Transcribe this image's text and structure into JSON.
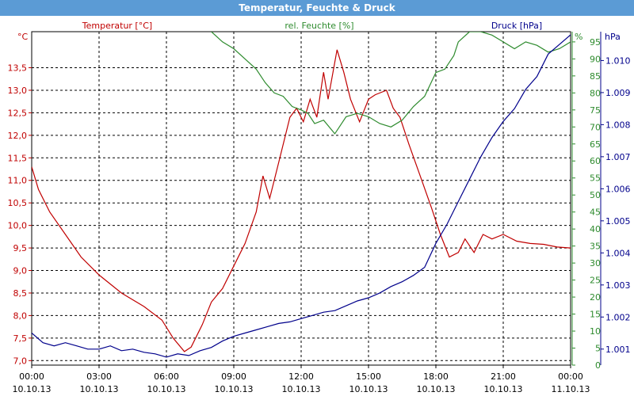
{
  "window": {
    "title": "Temperatur, Feuchte & Druck"
  },
  "colors": {
    "temperature": "#c00000",
    "humidity": "#2e8b2e",
    "pressure": "#00008b",
    "grid": "#000000",
    "titlebar": "#5b9bd5"
  },
  "chart_data": {
    "type": "line",
    "title": "Temperatur, Feuchte & Druck",
    "grid": true,
    "x_axis": {
      "ticks": [
        {
          "time": "00:00",
          "date": "10.10.13"
        },
        {
          "time": "03:00",
          "date": "10.10.13"
        },
        {
          "time": "06:00",
          "date": "10.10.13"
        },
        {
          "time": "09:00",
          "date": "10.10.13"
        },
        {
          "time": "12:00",
          "date": "10.10.13"
        },
        {
          "time": "15:00",
          "date": "10.10.13"
        },
        {
          "time": "18:00",
          "date": "10.10.13"
        },
        {
          "time": "21:00",
          "date": "10.10.13"
        },
        {
          "time": "00:00",
          "date": "11.10.13"
        }
      ],
      "range_hours": [
        0,
        24
      ]
    },
    "y_axes": {
      "temperature": {
        "label": "Temperatur [°C]",
        "unit": "°C",
        "range": [
          6.9,
          14.3
        ],
        "ticks": [
          "7,0",
          "7,5",
          "8,0",
          "8,5",
          "9,0",
          "9,5",
          "10,0",
          "10,5",
          "11,0",
          "11,5",
          "12,0",
          "12,5",
          "13,0",
          "13,5"
        ]
      },
      "humidity": {
        "label": "rel. Feuchte [%]",
        "unit": "%",
        "range": [
          0,
          98
        ],
        "ticks": [
          "0",
          "5",
          "10",
          "15",
          "20",
          "25",
          "30",
          "35",
          "40",
          "45",
          "50",
          "55",
          "60",
          "65",
          "70",
          "75",
          "80",
          "85",
          "90",
          "95"
        ]
      },
      "pressure": {
        "label": "Druck [hPa]",
        "unit": "hPa",
        "range": [
          1000.5,
          1010.9
        ],
        "ticks": [
          "1.001",
          "1.002",
          "1.003",
          "1.004",
          "1.005",
          "1.006",
          "1.007",
          "1.008",
          "1.009",
          "1.010"
        ]
      }
    },
    "series": [
      {
        "name": "Temperatur [°C]",
        "axis": "temperature",
        "color": "#c00000",
        "x": [
          0,
          0.3,
          0.8,
          1.5,
          2.2,
          3.0,
          4.0,
          5.0,
          5.8,
          6.3,
          6.8,
          7.1,
          7.6,
          8.0,
          8.5,
          9.0,
          9.5,
          10.0,
          10.3,
          10.6,
          11.0,
          11.5,
          11.8,
          12.1,
          12.4,
          12.7,
          13.0,
          13.2,
          13.6,
          13.9,
          14.2,
          14.6,
          15.0,
          15.3,
          15.8,
          16.1,
          16.4,
          16.8,
          17.3,
          17.8,
          18.2,
          18.6,
          19.0,
          19.3,
          19.7,
          20.1,
          20.5,
          21.0,
          21.6,
          22.2,
          22.8,
          23.4,
          24.0
        ],
        "y": [
          11.3,
          10.8,
          10.3,
          9.8,
          9.3,
          8.9,
          8.5,
          8.2,
          7.9,
          7.5,
          7.2,
          7.3,
          7.8,
          8.3,
          8.6,
          9.1,
          9.6,
          10.3,
          11.1,
          10.6,
          11.4,
          12.4,
          12.6,
          12.3,
          12.8,
          12.4,
          13.4,
          12.8,
          13.9,
          13.4,
          12.8,
          12.3,
          12.8,
          12.9,
          13.0,
          12.6,
          12.4,
          11.8,
          11.1,
          10.4,
          9.8,
          9.3,
          9.4,
          9.7,
          9.4,
          9.8,
          9.7,
          9.8,
          9.65,
          9.6,
          9.58,
          9.52,
          9.5
        ]
      },
      {
        "name": "rel. Feuchte [%]",
        "axis": "humidity",
        "color": "#2e8b2e",
        "x": [
          8.0,
          8.5,
          9.0,
          9.5,
          10.0,
          10.4,
          10.8,
          11.2,
          11.6,
          12.0,
          12.3,
          12.6,
          13.0,
          13.5,
          14.0,
          14.5,
          15.0,
          15.5,
          16.0,
          16.5,
          17.0,
          17.5,
          18.0,
          18.4,
          18.8,
          19.0,
          19.5,
          20.0,
          20.5,
          21.0,
          21.5,
          22.0,
          22.5,
          23.0,
          23.5,
          24.0
        ],
        "y": [
          98,
          95,
          93,
          90,
          87,
          83,
          80,
          79,
          76,
          75,
          74,
          71,
          72,
          68,
          73,
          74,
          73,
          71,
          70,
          72,
          76,
          79,
          86,
          87,
          91,
          95,
          98,
          98,
          97,
          95,
          93,
          95,
          94,
          92,
          93,
          95
        ]
      },
      {
        "name": "Druck [hPa]",
        "axis": "pressure",
        "color": "#00008b",
        "x": [
          0,
          0.5,
          1.0,
          1.5,
          2.0,
          2.5,
          3.0,
          3.5,
          4.0,
          4.5,
          5.0,
          5.5,
          6.0,
          6.5,
          7.0,
          7.5,
          8.0,
          8.5,
          9.0,
          9.5,
          10.0,
          10.5,
          11.0,
          11.5,
          12.0,
          12.5,
          13.0,
          13.5,
          14.0,
          14.5,
          15.0,
          15.5,
          16.0,
          16.5,
          17.0,
          17.5,
          18.0,
          18.5,
          19.0,
          19.5,
          20.0,
          20.5,
          21.0,
          21.5,
          22.0,
          22.5,
          23.0,
          23.5,
          24.0
        ],
        "y": [
          1001.5,
          1001.2,
          1001.1,
          1001.2,
          1001.1,
          1001.0,
          1001.0,
          1001.1,
          1000.95,
          1001.0,
          1000.9,
          1000.85,
          1000.75,
          1000.85,
          1000.8,
          1000.95,
          1001.05,
          1001.25,
          1001.4,
          1001.5,
          1001.6,
          1001.7,
          1001.8,
          1001.85,
          1001.95,
          1002.05,
          1002.15,
          1002.2,
          1002.35,
          1002.5,
          1002.6,
          1002.75,
          1002.95,
          1003.1,
          1003.3,
          1003.55,
          1004.3,
          1004.9,
          1005.6,
          1006.3,
          1007.0,
          1007.6,
          1008.1,
          1008.5,
          1009.1,
          1009.5,
          1010.2,
          1010.5,
          1010.8
        ]
      }
    ]
  }
}
